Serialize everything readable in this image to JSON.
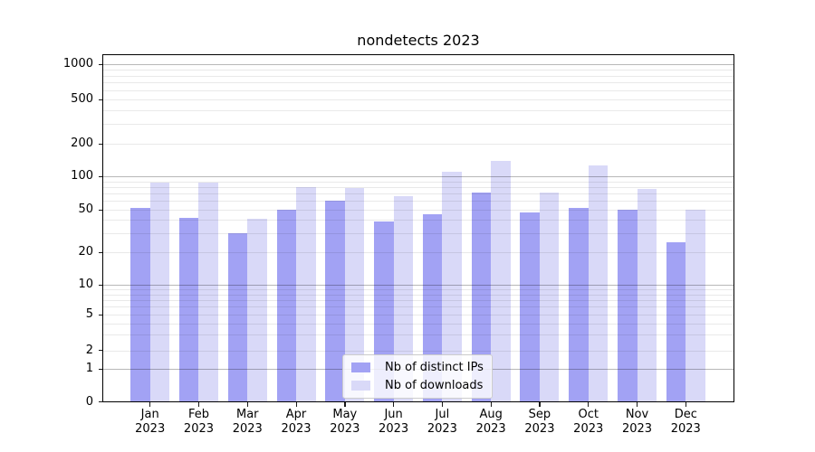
{
  "figure": {
    "title": "nondetects 2023"
  },
  "axis": {
    "y_ticks": [
      0,
      1,
      2,
      5,
      10,
      20,
      50,
      100,
      200,
      500,
      1000
    ],
    "y_major_gridlines": [
      1,
      10,
      100,
      1000
    ],
    "y_minor_gridlines": [
      2,
      3,
      4,
      5,
      6,
      7,
      8,
      9,
      20,
      30,
      40,
      50,
      60,
      70,
      80,
      90,
      200,
      300,
      400,
      500,
      600,
      700,
      800,
      900
    ],
    "x_ticks": [
      {
        "month": "Jan",
        "year": "2023"
      },
      {
        "month": "Feb",
        "year": "2023"
      },
      {
        "month": "Mar",
        "year": "2023"
      },
      {
        "month": "Apr",
        "year": "2023"
      },
      {
        "month": "May",
        "year": "2023"
      },
      {
        "month": "Jun",
        "year": "2023"
      },
      {
        "month": "Jul",
        "year": "2023"
      },
      {
        "month": "Aug",
        "year": "2023"
      },
      {
        "month": "Sep",
        "year": "2023"
      },
      {
        "month": "Oct",
        "year": "2023"
      },
      {
        "month": "Nov",
        "year": "2023"
      },
      {
        "month": "Dec",
        "year": "2023"
      }
    ]
  },
  "legend": {
    "items": [
      {
        "label": "Nb of distinct IPs",
        "color": "#a2a2f4"
      },
      {
        "label": "Nb of downloads",
        "color": "#d9d9f8"
      }
    ]
  },
  "chart_data": {
    "type": "bar",
    "title": "nondetects 2023",
    "categories": [
      "Jan 2023",
      "Feb 2023",
      "Mar 2023",
      "Apr 2023",
      "May 2023",
      "Jun 2023",
      "Jul 2023",
      "Aug 2023",
      "Sep 2023",
      "Oct 2023",
      "Nov 2023",
      "Dec 2023"
    ],
    "series": [
      {
        "name": "Nb of distinct IPs",
        "color": "#a2a2f4",
        "values": [
          52,
          42,
          30,
          50,
          60,
          39,
          45,
          72,
          47,
          52,
          50,
          25
        ]
      },
      {
        "name": "Nb of downloads",
        "color": "#d9d9f8",
        "values": [
          88,
          88,
          41,
          80,
          79,
          66,
          110,
          140,
          72,
          125,
          77,
          50
        ]
      }
    ],
    "xlabel": "",
    "ylabel": "",
    "yscale": "symlog",
    "yticks": [
      0,
      1,
      2,
      5,
      10,
      20,
      50,
      100,
      200,
      500,
      1000
    ],
    "ylim": [
      0,
      1300
    ],
    "grid": "both",
    "legend_position": "lower center"
  }
}
